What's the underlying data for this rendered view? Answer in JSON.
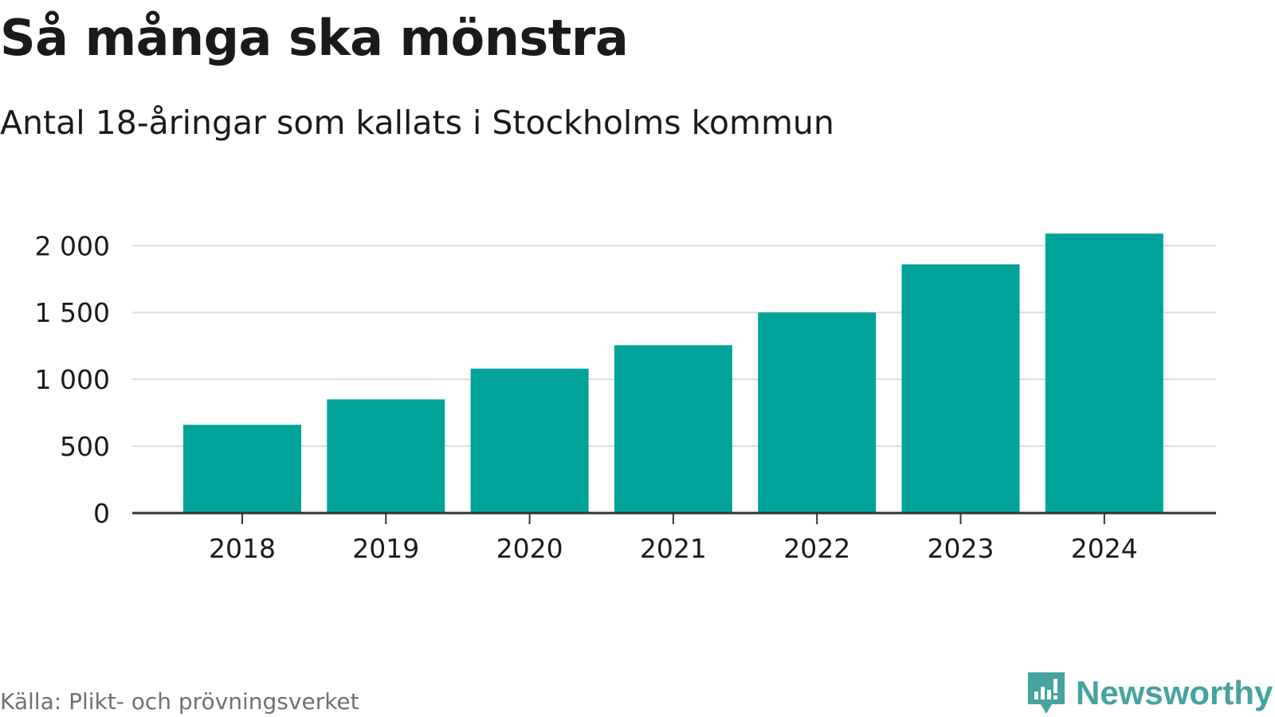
{
  "title": "Så många ska mönstra",
  "subtitle": "Antal 18-åringar som kallats i Stockholms kommun",
  "source": "Källa: Plikt- och prövningsverket",
  "brand": {
    "name": "Newsworthy",
    "icon": "newsworthy-logo-icon",
    "color": "#46a39f"
  },
  "colors": {
    "bar": "#00a39a",
    "grid": "#dddddd",
    "axis": "#333333",
    "text": "#1a1a1a"
  },
  "chart_data": {
    "type": "bar",
    "categories": [
      "2018",
      "2019",
      "2020",
      "2021",
      "2022",
      "2023",
      "2024"
    ],
    "values": [
      660,
      850,
      1080,
      1255,
      1500,
      1860,
      2090
    ],
    "yticks": [
      0,
      500,
      1000,
      1500,
      2000
    ],
    "ytick_labels": [
      "0",
      "500",
      "1 000",
      "1 500",
      "2 000"
    ],
    "ylim": [
      0,
      2100
    ],
    "grid": true,
    "legend": "none",
    "xlabel": "",
    "ylabel": ""
  }
}
